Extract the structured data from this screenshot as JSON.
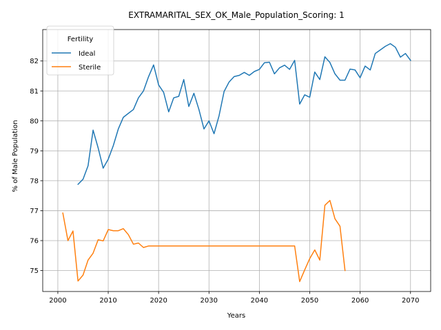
{
  "chart_data": {
    "type": "line",
    "title": "EXTRAMARITAL_SEX_OK_Male_Population_Scoring: 1",
    "xlabel": "Years",
    "ylabel": "% of Male Population",
    "xlim": [
      1997,
      2074
    ],
    "ylim": [
      74.3,
      83.05
    ],
    "xticks": [
      2000,
      2010,
      2020,
      2030,
      2040,
      2050,
      2060,
      2070
    ],
    "yticks": [
      75,
      76,
      77,
      78,
      79,
      80,
      81,
      82
    ],
    "grid": true,
    "legend": {
      "title": "Fertility",
      "placement": "top-left"
    },
    "series": [
      {
        "name": "Ideal",
        "color": "#1f77b4",
        "x": [
          2004,
          2005,
          2006,
          2007,
          2008,
          2009,
          2010,
          2011,
          2012,
          2013,
          2014,
          2015,
          2016,
          2017,
          2018,
          2019,
          2020,
          2021,
          2022,
          2023,
          2024,
          2025,
          2026,
          2027,
          2028,
          2029,
          2030,
          2031,
          2032,
          2033,
          2034,
          2035,
          2036,
          2037,
          2038,
          2039,
          2040,
          2041,
          2042,
          2043,
          2044,
          2045,
          2046,
          2047,
          2048,
          2049,
          2050,
          2051,
          2052,
          2053,
          2054,
          2055,
          2056,
          2057,
          2058,
          2059,
          2060,
          2061,
          2062,
          2063,
          2064,
          2065,
          2066,
          2067,
          2068,
          2069,
          2070
        ],
        "y": [
          77.88,
          78.05,
          78.5,
          79.69,
          79.1,
          78.42,
          78.72,
          79.17,
          79.73,
          80.12,
          80.25,
          80.38,
          80.77,
          81.0,
          81.47,
          81.87,
          81.2,
          80.95,
          80.3,
          80.77,
          80.82,
          81.38,
          80.48,
          80.92,
          80.38,
          79.73,
          80.0,
          79.57,
          80.17,
          80.98,
          81.3,
          81.48,
          81.52,
          81.62,
          81.52,
          81.65,
          81.72,
          81.94,
          81.96,
          81.57,
          81.77,
          81.86,
          81.72,
          82.02,
          80.56,
          80.87,
          80.79,
          81.63,
          81.38,
          82.14,
          81.95,
          81.57,
          81.36,
          81.36,
          81.73,
          81.7,
          81.44,
          81.83,
          81.7,
          82.25,
          82.37,
          82.49,
          82.58,
          82.46,
          82.13,
          82.25,
          82.02
        ]
      },
      {
        "name": "Sterile",
        "color": "#ff7f0e",
        "x": [
          2001,
          2002,
          2003,
          2004,
          2005,
          2006,
          2007,
          2008,
          2009,
          2010,
          2011,
          2012,
          2013,
          2014,
          2015,
          2016,
          2017,
          2018,
          2019,
          2020,
          2021,
          2022,
          2023,
          2024,
          2025,
          2026,
          2027,
          2028,
          2029,
          2030,
          2031,
          2032,
          2033,
          2034,
          2035,
          2036,
          2037,
          2038,
          2039,
          2040,
          2041,
          2042,
          2043,
          2044,
          2045,
          2046,
          2047,
          2048,
          2049,
          2050,
          2051,
          2052,
          2053,
          2054,
          2055,
          2056,
          2057
        ],
        "y": [
          76.92,
          76.0,
          76.32,
          74.65,
          74.85,
          75.35,
          75.58,
          76.03,
          75.99,
          76.37,
          76.33,
          76.33,
          76.4,
          76.2,
          75.88,
          75.92,
          75.77,
          75.82,
          75.82,
          75.82,
          75.82,
          75.82,
          75.82,
          75.82,
          75.82,
          75.82,
          75.82,
          75.82,
          75.82,
          75.82,
          75.82,
          75.82,
          75.82,
          75.82,
          75.82,
          75.82,
          75.82,
          75.82,
          75.82,
          75.82,
          75.82,
          75.82,
          75.82,
          75.82,
          75.82,
          75.82,
          75.82,
          74.63,
          75.02,
          75.4,
          75.69,
          75.35,
          77.18,
          77.34,
          76.73,
          76.48,
          75.0
        ]
      }
    ]
  }
}
